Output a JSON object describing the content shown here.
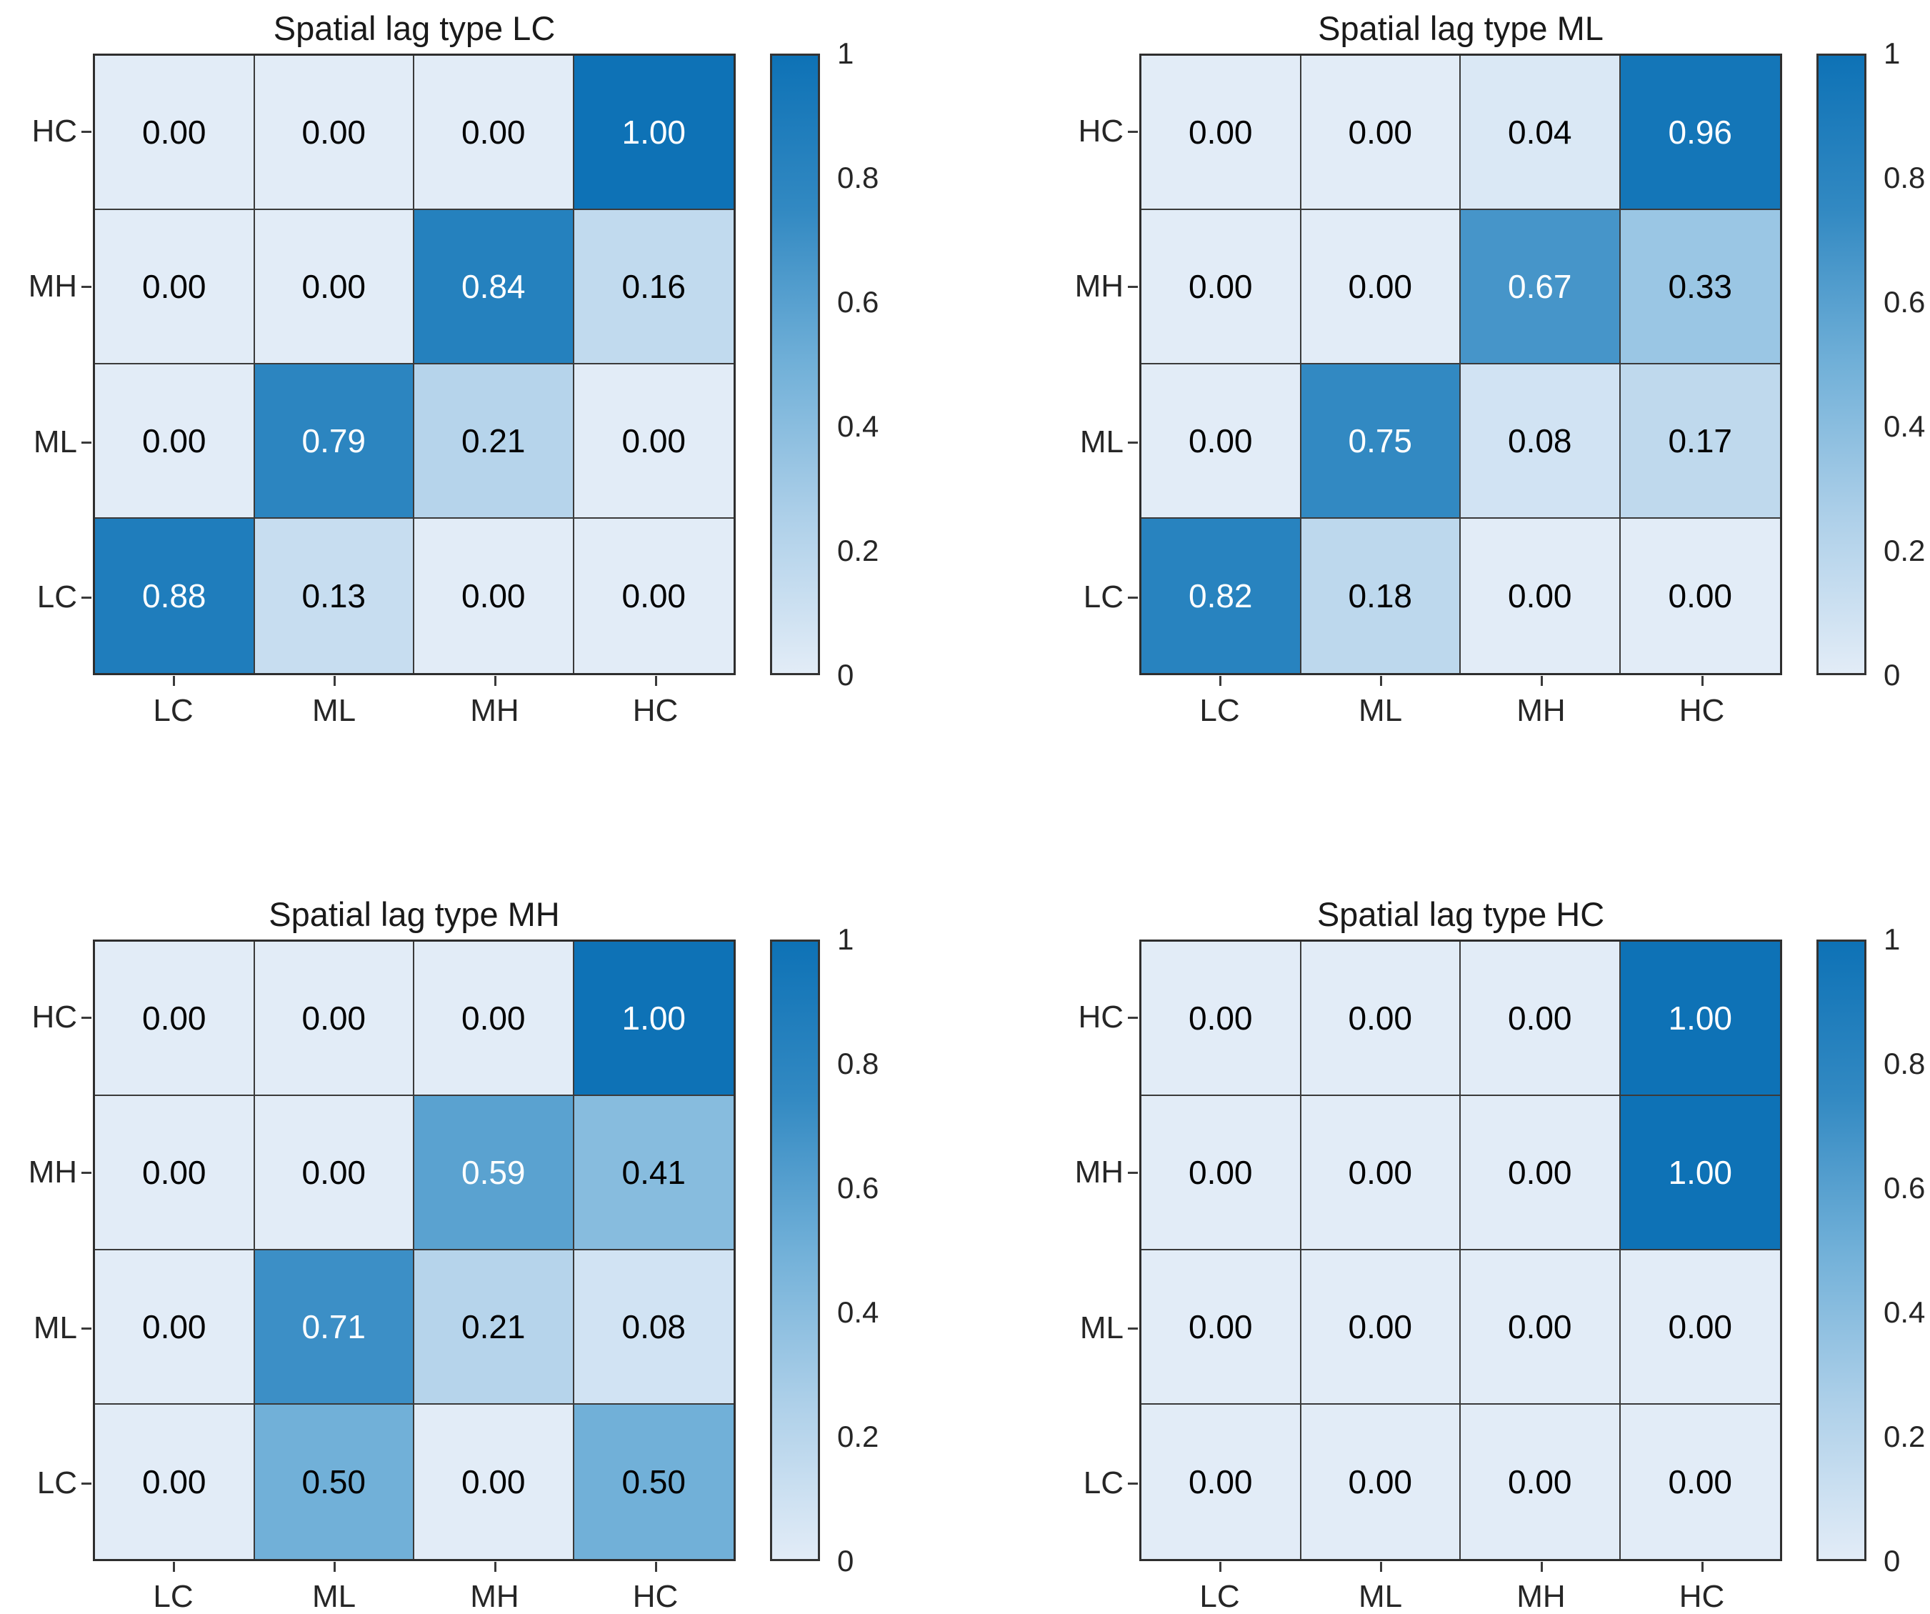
{
  "figure": {
    "background": "#ffffff",
    "n_panels": 4,
    "grid_line_color": "#3a3a3a",
    "axis_label_color": "#262626",
    "title_color": "#1a1a1a"
  },
  "colormap": {
    "stops": [
      {
        "t": 0.0,
        "color": "#e2ecf7"
      },
      {
        "t": 0.25,
        "color": "#aed0e9"
      },
      {
        "t": 0.5,
        "color": "#71b0d8"
      },
      {
        "t": 0.75,
        "color": "#3289c2"
      },
      {
        "t": 1.0,
        "color": "#0e72b6"
      }
    ],
    "white_text_threshold": 0.55,
    "cell_text_dark": "#000000",
    "cell_text_light": "#ffffff"
  },
  "colorbar": {
    "tick_labels": [
      "1",
      "0.8",
      "0.6",
      "0.4",
      "0.2",
      "0"
    ],
    "tick_values": [
      1,
      0.8,
      0.6,
      0.4,
      0.2,
      0
    ],
    "range": [
      0,
      1
    ]
  },
  "chart_data": [
    {
      "type": "heatmap",
      "title": "Spatial lag type LC",
      "row_labels": [
        "HC",
        "MH",
        "ML",
        "LC"
      ],
      "col_labels": [
        "LC",
        "ML",
        "MH",
        "HC"
      ],
      "values": [
        [
          0.0,
          0.0,
          0.0,
          1.0
        ],
        [
          0.0,
          0.0,
          0.84,
          0.16
        ],
        [
          0.0,
          0.79,
          0.21,
          0.0
        ],
        [
          0.88,
          0.13,
          0.0,
          0.0
        ]
      ],
      "value_format": "0.00",
      "colorbar_range": [
        0,
        1
      ]
    },
    {
      "type": "heatmap",
      "title": "Spatial lag type ML",
      "row_labels": [
        "HC",
        "MH",
        "ML",
        "LC"
      ],
      "col_labels": [
        "LC",
        "ML",
        "MH",
        "HC"
      ],
      "values": [
        [
          0.0,
          0.0,
          0.04,
          0.96
        ],
        [
          0.0,
          0.0,
          0.67,
          0.33
        ],
        [
          0.0,
          0.75,
          0.08,
          0.17
        ],
        [
          0.82,
          0.18,
          0.0,
          0.0
        ]
      ],
      "value_format": "0.00",
      "colorbar_range": [
        0,
        1
      ]
    },
    {
      "type": "heatmap",
      "title": "Spatial lag type MH",
      "row_labels": [
        "HC",
        "MH",
        "ML",
        "LC"
      ],
      "col_labels": [
        "LC",
        "ML",
        "MH",
        "HC"
      ],
      "values": [
        [
          0.0,
          0.0,
          0.0,
          1.0
        ],
        [
          0.0,
          0.0,
          0.59,
          0.41
        ],
        [
          0.0,
          0.71,
          0.21,
          0.08
        ],
        [
          0.0,
          0.5,
          0.0,
          0.5
        ]
      ],
      "value_format": "0.00",
      "colorbar_range": [
        0,
        1
      ]
    },
    {
      "type": "heatmap",
      "title": "Spatial lag type HC",
      "row_labels": [
        "HC",
        "MH",
        "ML",
        "LC"
      ],
      "col_labels": [
        "LC",
        "ML",
        "MH",
        "HC"
      ],
      "values": [
        [
          0.0,
          0.0,
          0.0,
          1.0
        ],
        [
          0.0,
          0.0,
          0.0,
          1.0
        ],
        [
          0.0,
          0.0,
          0.0,
          0.0
        ],
        [
          0.0,
          0.0,
          0.0,
          0.0
        ]
      ],
      "value_format": "0.00",
      "colorbar_range": [
        0,
        1
      ]
    }
  ]
}
